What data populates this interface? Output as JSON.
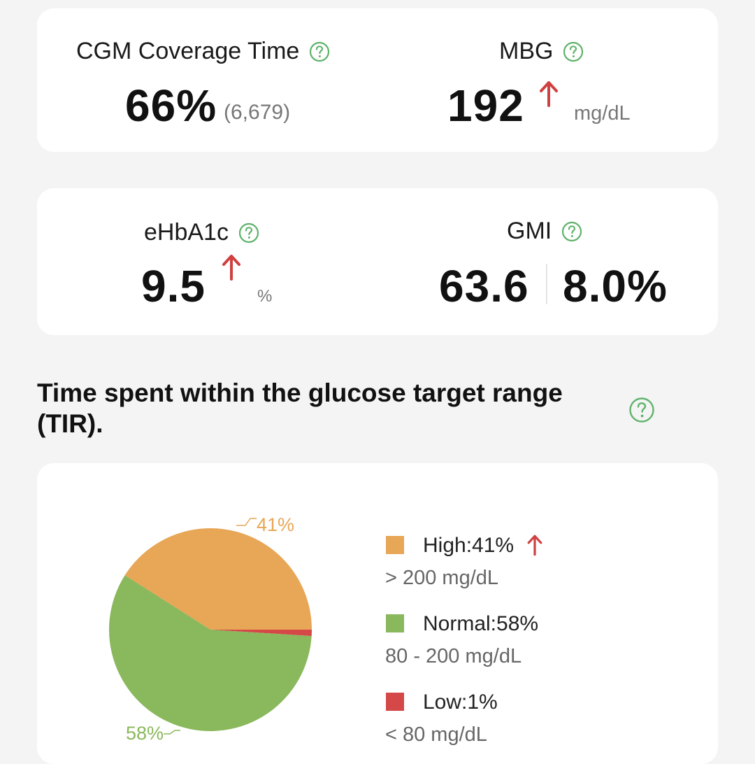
{
  "colors": {
    "accent_green": "#5fb36a",
    "alert_red": "#cf4040",
    "high": "#e8a657",
    "normal": "#8ab85c",
    "low": "#d44848"
  },
  "icons": {
    "help": "help-circle-icon",
    "trend": "arrow-up-icon"
  },
  "cards": {
    "coverage": {
      "label": "CGM Coverage Time",
      "value": "66%",
      "sub_value": "(6,679)"
    },
    "mbg": {
      "label": "MBG",
      "value": "192",
      "unit": "mg/dL"
    },
    "ehba1c": {
      "label": "eHbA1c",
      "value": "9.5",
      "unit": "%"
    },
    "gmi": {
      "label": "GMI",
      "value_mmol": "63.6",
      "value_percent": "8.0%"
    }
  },
  "tir": {
    "title": "Time spent within the glucose target range (TIR).",
    "pie_labels": {
      "high": "41%",
      "normal": "58%"
    },
    "legend": [
      {
        "name": "High:41%",
        "range": "> 200 mg/dL"
      },
      {
        "name": "Normal:58%",
        "range": "80 - 200 mg/dL"
      },
      {
        "name": "Low:1%",
        "range": "< 80 mg/dL"
      }
    ]
  },
  "chart_data": {
    "type": "pie",
    "title": "Time spent within the glucose target range (TIR).",
    "categories": [
      "High",
      "Normal",
      "Low"
    ],
    "values": [
      41,
      58,
      1
    ],
    "colors": [
      "#e8a657",
      "#8ab85c",
      "#d44848"
    ]
  }
}
